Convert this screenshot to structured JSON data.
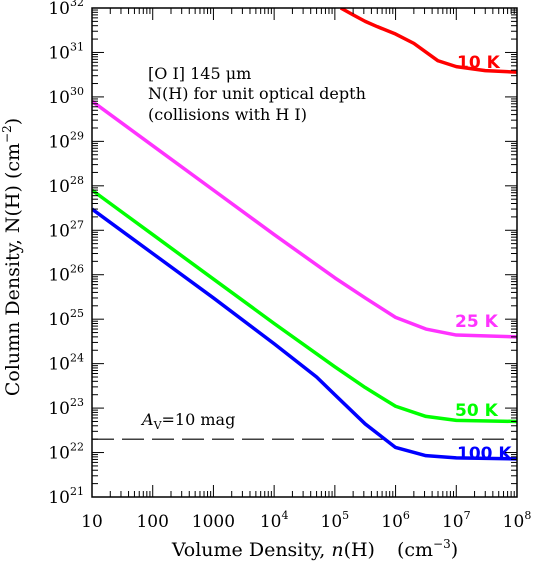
{
  "chart_data": {
    "type": "line",
    "xscale": "log",
    "yscale": "log",
    "xlim": [
      10,
      100000000
    ],
    "ylim": [
      1e+21,
      1e+32
    ],
    "xlabel": {
      "main": "Volume Density, ",
      "var": "n",
      "arg": "(H)",
      "unit": "(cm",
      "unit_exp": "−3",
      "unit_close": ")"
    },
    "ylabel": {
      "main": "Column Density, N(H)  (cm",
      "exp": "−2",
      "close": ")"
    },
    "x_ticks": [
      {
        "value": 10,
        "label": "10",
        "sup": ""
      },
      {
        "value": 100,
        "label": "100",
        "sup": ""
      },
      {
        "value": 1000,
        "label": "1000",
        "sup": ""
      },
      {
        "value": 10000,
        "label": "10",
        "sup": "4"
      },
      {
        "value": 100000,
        "label": "10",
        "sup": "5"
      },
      {
        "value": 1000000,
        "label": "10",
        "sup": "6"
      },
      {
        "value": 10000000,
        "label": "10",
        "sup": "7"
      },
      {
        "value": 100000000,
        "label": "10",
        "sup": "8"
      }
    ],
    "y_ticks": [
      {
        "value": 1e+21,
        "label": "10",
        "sup": "21"
      },
      {
        "value": 1e+22,
        "label": "10",
        "sup": "22"
      },
      {
        "value": 1e+23,
        "label": "10",
        "sup": "23"
      },
      {
        "value": 1e+24,
        "label": "10",
        "sup": "24"
      },
      {
        "value": 1e+25,
        "label": "10",
        "sup": "25"
      },
      {
        "value": 1e+26,
        "label": "10",
        "sup": "26"
      },
      {
        "value": 1e+27,
        "label": "10",
        "sup": "27"
      },
      {
        "value": 1e+28,
        "label": "10",
        "sup": "28"
      },
      {
        "value": 1e+29,
        "label": "10",
        "sup": "29"
      },
      {
        "value": 1e+30,
        "label": "10",
        "sup": "30"
      },
      {
        "value": 1e+31,
        "label": "10",
        "sup": "31"
      },
      {
        "value": 1e+32,
        "label": "10",
        "sup": "32"
      }
    ],
    "annotation": {
      "line1": "[O I] 145 μm",
      "line2": "N(H) for unit optical depth",
      "line3": "(collisions with H I)"
    },
    "reference_line": {
      "y": 2e+22,
      "style": "dashed",
      "label_var": "A",
      "label_sub": "V",
      "label_rest": "=10 mag"
    },
    "series": [
      {
        "name": "10 K",
        "color": "#ff0000",
        "x": [
          125000,
          200000,
          316000,
          500000,
          1000000,
          2000000,
          5000000,
          10000000,
          30000000,
          100000000
        ],
        "y": [
          1e+32,
          7e+31,
          5e+31,
          3.8e+31,
          2.6e+31,
          1.6e+31,
          6.5e+30,
          4.8e+30,
          3.9e+30,
          3.6e+30
        ]
      },
      {
        "name": "25 K",
        "color": "#ff33ff",
        "x": [
          10,
          100,
          1000,
          10000,
          100000,
          316000,
          1000000,
          3160000,
          10000000,
          100000000
        ],
        "y": [
          8e+29,
          8e+28,
          8e+27,
          8e+26,
          8.5e+25,
          3e+25,
          1.1e+25,
          6e+24,
          4.4e+24,
          4e+24
        ]
      },
      {
        "name": "50 K",
        "color": "#00ff00",
        "x": [
          10,
          100,
          1000,
          10000,
          100000,
          316000,
          1000000,
          3160000,
          10000000,
          100000000
        ],
        "y": [
          8e+27,
          8e+26,
          8e+25,
          8e+24,
          8.5e+23,
          2.9e+23,
          1.1e+23,
          6.5e+22,
          5.3e+22,
          5e+22
        ]
      },
      {
        "name": "100 K",
        "color": "#0000ff",
        "x": [
          10,
          100,
          1000,
          10000,
          50000,
          100000,
          316000,
          1000000,
          3160000,
          10000000,
          100000000
        ],
        "y": [
          3e+27,
          3e+26,
          3e+25,
          2.8e+24,
          5e+23,
          2e+23,
          4.4e+22,
          1.3e+22,
          8.5e+21,
          7.6e+21,
          7.2e+21
        ]
      }
    ]
  }
}
